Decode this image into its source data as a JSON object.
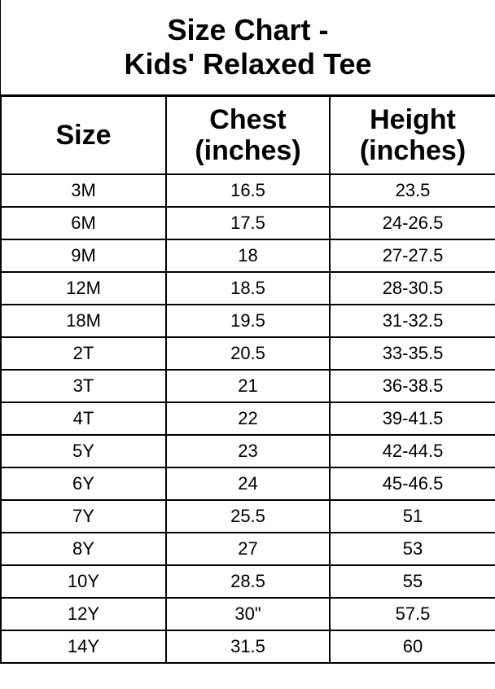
{
  "title": {
    "line1": "Size Chart -",
    "line2": "Kids' Relaxed Tee"
  },
  "headers": [
    {
      "line1": "Size",
      "line2": ""
    },
    {
      "line1": "Chest",
      "line2": "(inches)"
    },
    {
      "line1": "Height",
      "line2": "(inches)"
    }
  ],
  "rows": [
    [
      "3M",
      "16.5",
      "23.5"
    ],
    [
      "6M",
      "17.5",
      "24-26.5"
    ],
    [
      "9M",
      "18",
      "27-27.5"
    ],
    [
      "12M",
      "18.5",
      "28-30.5"
    ],
    [
      "18M",
      "19.5",
      "31-32.5"
    ],
    [
      "2T",
      "20.5",
      "33-35.5"
    ],
    [
      "3T",
      "21",
      "36-38.5"
    ],
    [
      "4T",
      "22",
      "39-41.5"
    ],
    [
      "5Y",
      "23",
      "42-44.5"
    ],
    [
      "6Y",
      "24",
      "45-46.5"
    ],
    [
      "7Y",
      "25.5",
      "51"
    ],
    [
      "8Y",
      "27",
      "53"
    ],
    [
      "10Y",
      "28.5",
      "55"
    ],
    [
      "12Y",
      "30\"",
      "57.5"
    ],
    [
      "14Y",
      "31.5",
      "60"
    ]
  ]
}
